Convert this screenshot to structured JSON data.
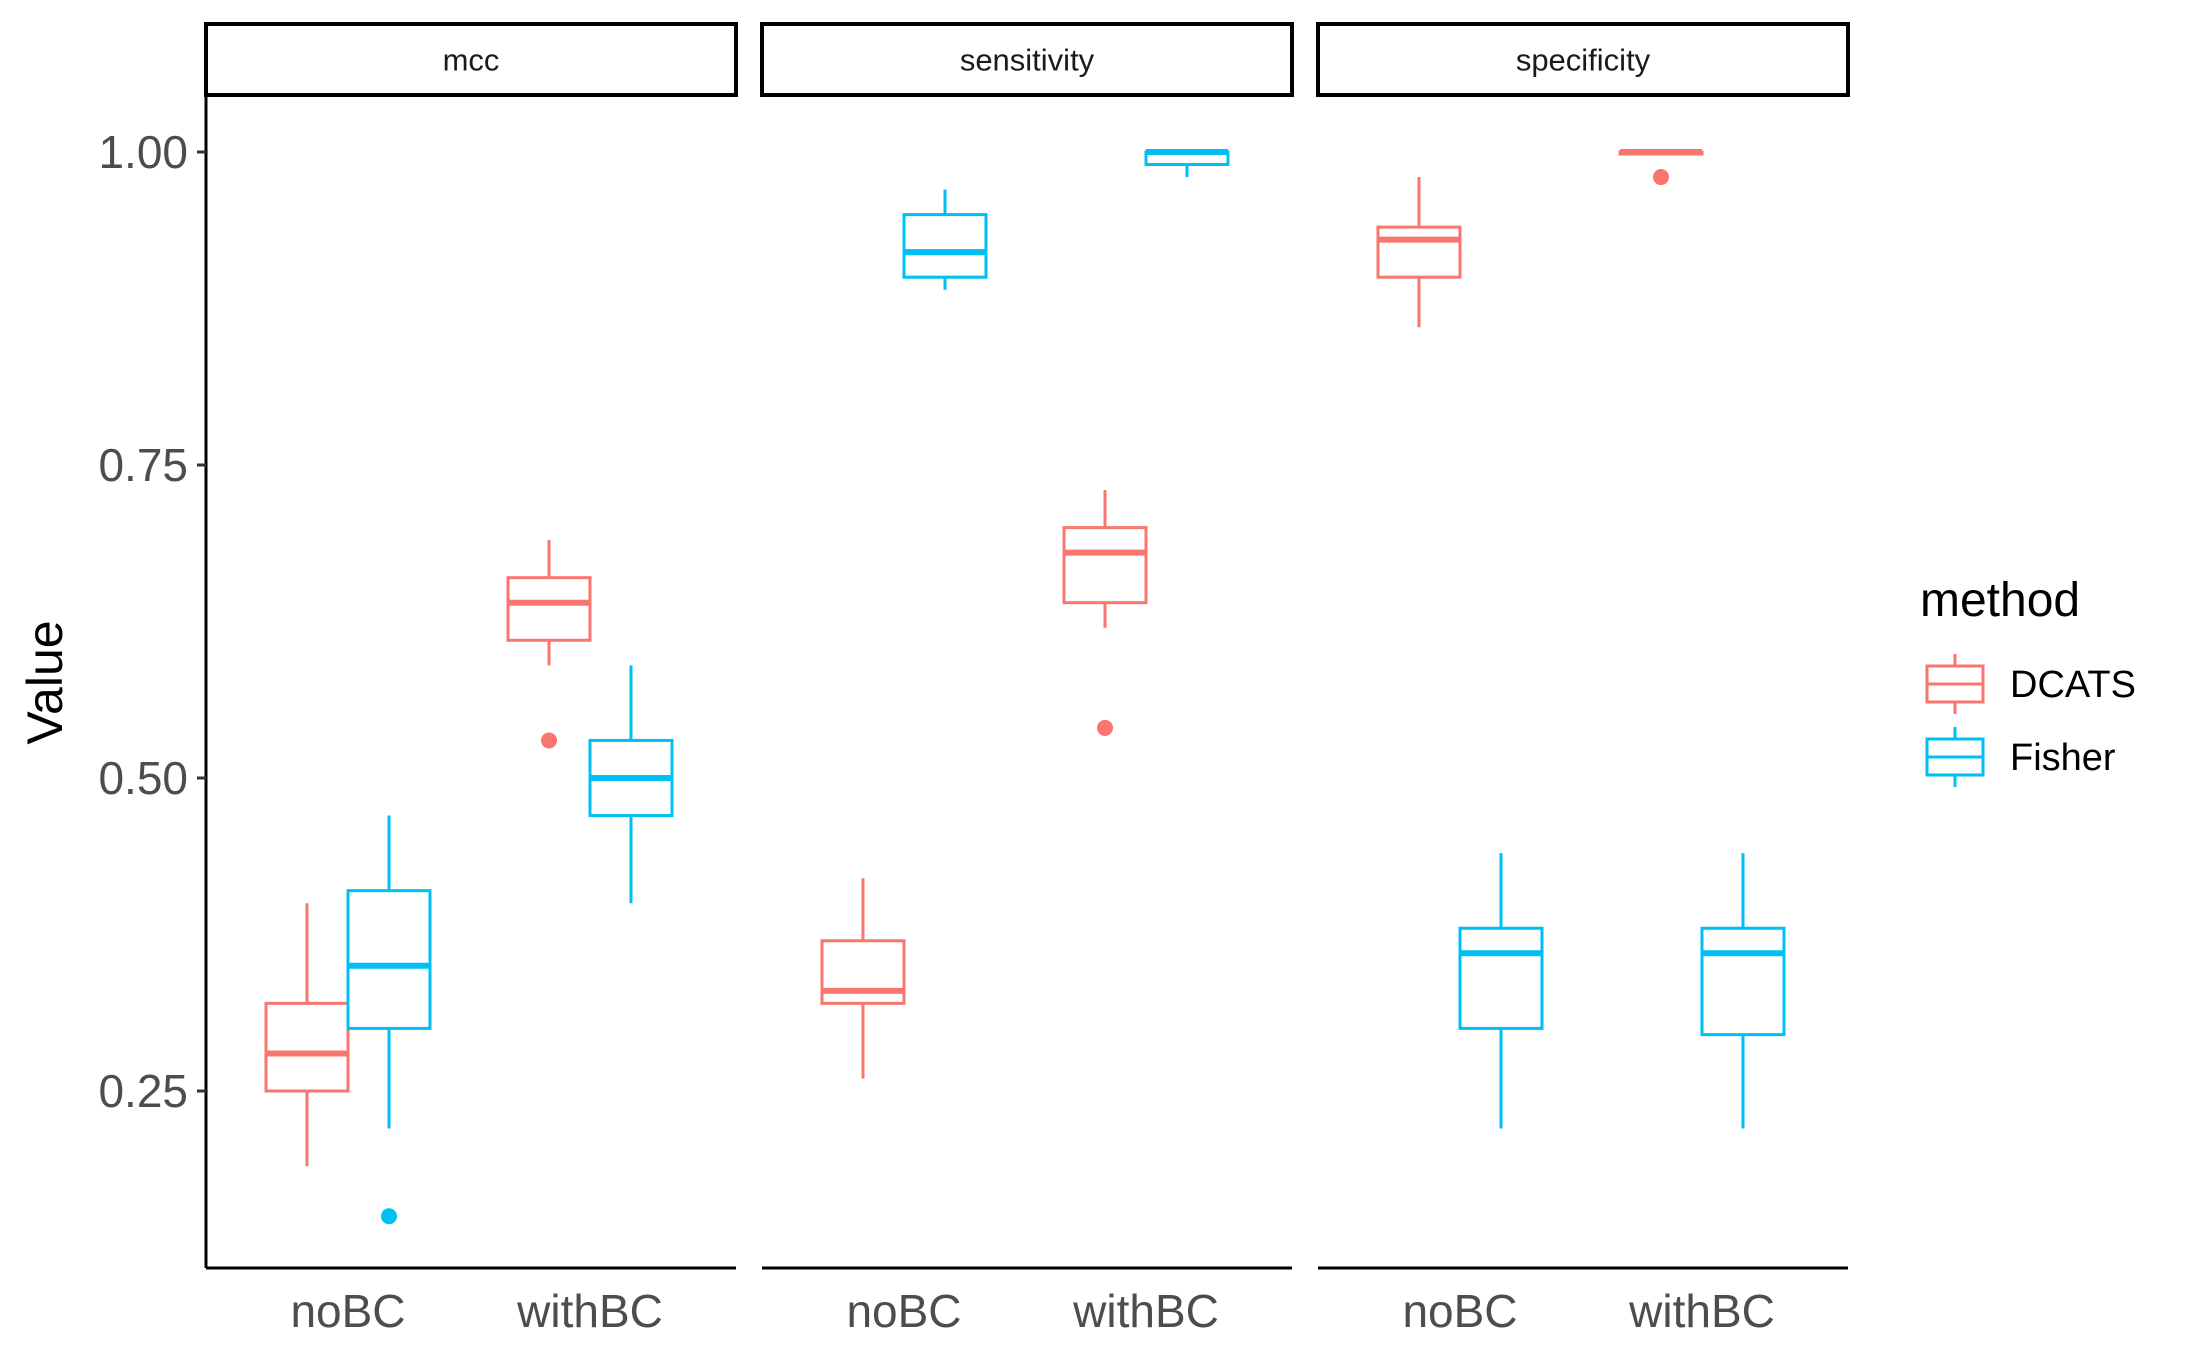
{
  "chart_data": {
    "type": "boxplot",
    "facets": [
      "mcc",
      "sensitivity",
      "specificity"
    ],
    "categories": [
      "noBC",
      "withBC"
    ],
    "ylabel": "Value",
    "xlabel": "",
    "ylim": [
      0.12,
      1.06
    ],
    "yticks": [
      0.25,
      0.5,
      0.75,
      1.0
    ],
    "ytick_labels": [
      "0.25",
      "0.50",
      "0.75",
      "1.00"
    ],
    "legend": {
      "title": "method",
      "position": "right",
      "entries": [
        {
          "name": "DCATS",
          "color": "#F8766D"
        },
        {
          "name": "Fisher",
          "color": "#00BFF4"
        }
      ]
    },
    "grid": false,
    "boxes": [
      {
        "facet": "mcc",
        "category": "noBC",
        "method": "DCATS",
        "lower_whisker": 0.19,
        "q1": 0.25,
        "median": 0.28,
        "q3": 0.32,
        "upper_whisker": 0.4,
        "outliers": []
      },
      {
        "facet": "mcc",
        "category": "noBC",
        "method": "Fisher",
        "lower_whisker": 0.22,
        "q1": 0.3,
        "median": 0.35,
        "q3": 0.41,
        "upper_whisker": 0.47,
        "outliers": [
          0.15
        ]
      },
      {
        "facet": "mcc",
        "category": "withBC",
        "method": "DCATS",
        "lower_whisker": 0.59,
        "q1": 0.61,
        "median": 0.64,
        "q3": 0.66,
        "upper_whisker": 0.69,
        "outliers": [
          0.53
        ]
      },
      {
        "facet": "mcc",
        "category": "withBC",
        "method": "Fisher",
        "lower_whisker": 0.4,
        "q1": 0.47,
        "median": 0.5,
        "q3": 0.53,
        "upper_whisker": 0.59,
        "outliers": []
      },
      {
        "facet": "sensitivity",
        "category": "noBC",
        "method": "DCATS",
        "lower_whisker": 0.26,
        "q1": 0.32,
        "median": 0.33,
        "q3": 0.37,
        "upper_whisker": 0.42,
        "outliers": []
      },
      {
        "facet": "sensitivity",
        "category": "noBC",
        "method": "Fisher",
        "lower_whisker": 0.89,
        "q1": 0.9,
        "median": 0.92,
        "q3": 0.95,
        "upper_whisker": 0.97,
        "outliers": []
      },
      {
        "facet": "sensitivity",
        "category": "withBC",
        "method": "DCATS",
        "lower_whisker": 0.62,
        "q1": 0.64,
        "median": 0.68,
        "q3": 0.7,
        "upper_whisker": 0.73,
        "outliers": [
          0.54
        ]
      },
      {
        "facet": "sensitivity",
        "category": "withBC",
        "method": "Fisher",
        "lower_whisker": 0.98,
        "q1": 0.99,
        "median": 1.0,
        "q3": 1.0,
        "upper_whisker": 1.0,
        "outliers": []
      },
      {
        "facet": "specificity",
        "category": "noBC",
        "method": "DCATS",
        "lower_whisker": 0.86,
        "q1": 0.9,
        "median": 0.93,
        "q3": 0.94,
        "upper_whisker": 0.98,
        "outliers": []
      },
      {
        "facet": "specificity",
        "category": "noBC",
        "method": "Fisher",
        "lower_whisker": 0.22,
        "q1": 0.3,
        "median": 0.36,
        "q3": 0.38,
        "upper_whisker": 0.44,
        "outliers": []
      },
      {
        "facet": "specificity",
        "category": "withBC",
        "method": "DCATS",
        "lower_whisker": 1.0,
        "q1": 1.0,
        "median": 1.0,
        "q3": 1.0,
        "upper_whisker": 1.0,
        "outliers": [
          0.98
        ]
      },
      {
        "facet": "specificity",
        "category": "withBC",
        "method": "Fisher",
        "lower_whisker": 0.22,
        "q1": 0.295,
        "median": 0.36,
        "q3": 0.38,
        "upper_whisker": 0.44,
        "outliers": []
      }
    ]
  }
}
